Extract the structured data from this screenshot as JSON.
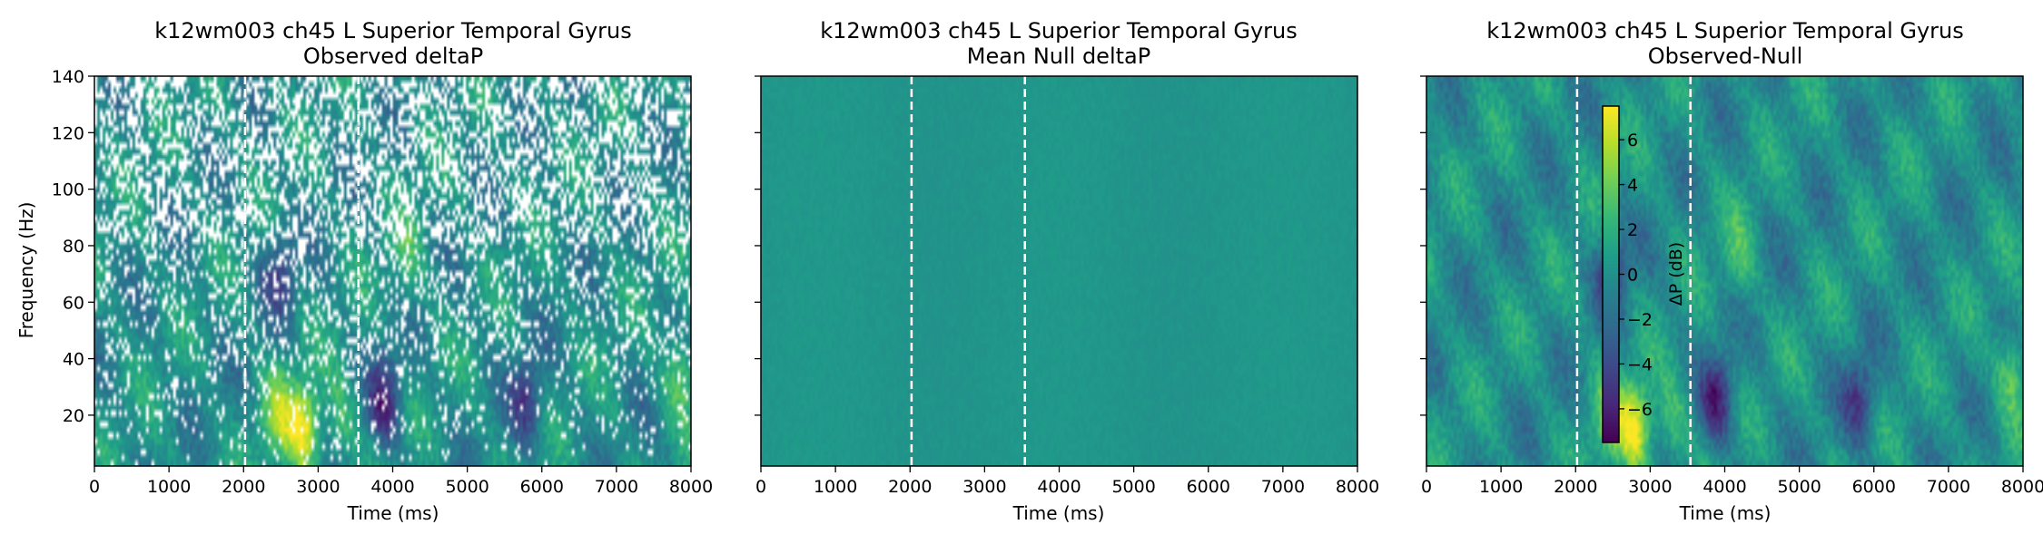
{
  "figure": {
    "colormap": "viridis",
    "colormap_stops": [
      "#440154",
      "#482878",
      "#3e4989",
      "#31688e",
      "#26828e",
      "#1f9e89",
      "#35b779",
      "#6ece58",
      "#b5de2b",
      "#fde725"
    ]
  },
  "chart_data": [
    {
      "type": "heatmap",
      "title_line1": "k12wm003 ch45 L Superior Temporal Gyrus",
      "title_line2": "Observed deltaP",
      "xlabel": "Time (ms)",
      "ylabel": "Frequency (Hz)",
      "xlim": [
        0,
        8000
      ],
      "ylim": [
        2,
        140
      ],
      "xticks": [
        0,
        1000,
        2000,
        3000,
        4000,
        5000,
        6000,
        7000,
        8000
      ],
      "yticks": [
        20,
        40,
        60,
        80,
        100,
        120,
        140
      ],
      "show_yticklabels": true,
      "event_lines_ms": [
        2020,
        3540
      ],
      "masked_non_significant": true,
      "color_range": [
        -7.5,
        7.5
      ],
      "hotspots": [
        {
          "time_ms": 2800,
          "freq_hz": 15,
          "value": 7.0
        },
        {
          "time_ms": 2450,
          "freq_hz": 20,
          "value": 4.0
        },
        {
          "time_ms": 3300,
          "freq_hz": 18,
          "value": 3.0
        },
        {
          "time_ms": 7850,
          "freq_hz": 35,
          "value": 4.0
        },
        {
          "time_ms": 3900,
          "freq_hz": 25,
          "value": -5.5
        },
        {
          "time_ms": 2500,
          "freq_hz": 70,
          "value": -4.0
        },
        {
          "time_ms": 5800,
          "freq_hz": 25,
          "value": -4.5
        },
        {
          "time_ms": 4200,
          "freq_hz": 75,
          "value": 2.5
        }
      ]
    },
    {
      "type": "heatmap",
      "title_line1": "k12wm003 ch45 L Superior Temporal Gyrus",
      "title_line2": "Mean Null deltaP",
      "xlabel": "Time (ms)",
      "ylabel": "",
      "xlim": [
        0,
        8000
      ],
      "ylim": [
        2,
        140
      ],
      "xticks": [
        0,
        1000,
        2000,
        3000,
        4000,
        5000,
        6000,
        7000,
        8000
      ],
      "yticks": [
        20,
        40,
        60,
        80,
        100,
        120,
        140
      ],
      "show_yticklabels": false,
      "event_lines_ms": [
        2020,
        3540
      ],
      "masked_non_significant": false,
      "color_range": [
        -7.5,
        7.5
      ],
      "hotspots": []
    },
    {
      "type": "heatmap",
      "title_line1": "k12wm003 ch45 L Superior Temporal Gyrus",
      "title_line2": "Observed-Null",
      "xlabel": "Time (ms)",
      "ylabel": "",
      "xlim": [
        0,
        8000
      ],
      "ylim": [
        2,
        140
      ],
      "xticks": [
        0,
        1000,
        2000,
        3000,
        4000,
        5000,
        6000,
        7000,
        8000
      ],
      "yticks": [
        20,
        40,
        60,
        80,
        100,
        120,
        140
      ],
      "show_yticklabels": false,
      "event_lines_ms": [
        2020,
        3540
      ],
      "masked_non_significant": false,
      "color_range": [
        -7.5,
        7.5
      ],
      "hotspots": [
        {
          "time_ms": 2800,
          "freq_hz": 15,
          "value": 7.0
        },
        {
          "time_ms": 2450,
          "freq_hz": 20,
          "value": 4.0
        },
        {
          "time_ms": 3300,
          "freq_hz": 18,
          "value": 3.0
        },
        {
          "time_ms": 7850,
          "freq_hz": 35,
          "value": 4.0
        },
        {
          "time_ms": 3900,
          "freq_hz": 25,
          "value": -5.5
        },
        {
          "time_ms": 2500,
          "freq_hz": 70,
          "value": -4.0
        },
        {
          "time_ms": 5800,
          "freq_hz": 25,
          "value": -4.5
        },
        {
          "time_ms": 4200,
          "freq_hz": 75,
          "value": 2.5
        }
      ],
      "colorbar": {
        "label": "ΔP (dB)",
        "ticks": [
          -6,
          -4,
          -2,
          0,
          2,
          4,
          6
        ],
        "range": [
          -7.5,
          7.5
        ]
      }
    }
  ]
}
